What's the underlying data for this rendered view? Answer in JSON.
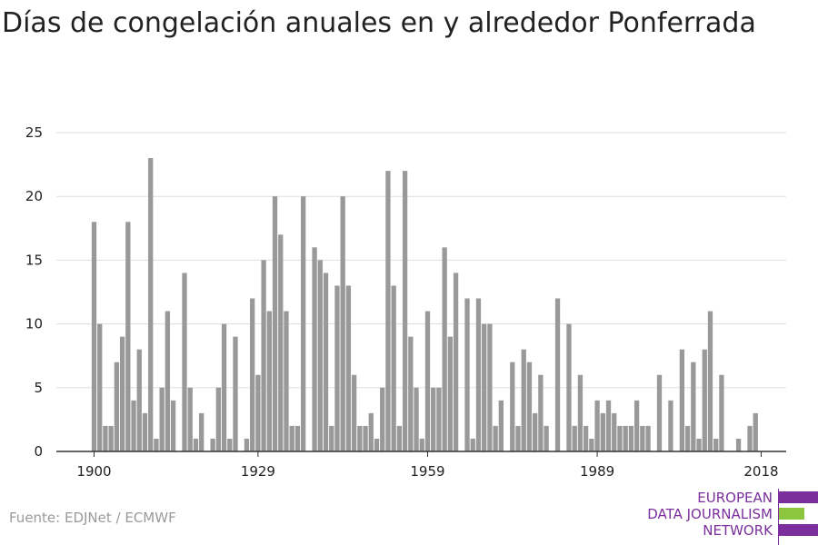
{
  "chart_data": {
    "type": "bar",
    "title": "Días de congelación anuales en y alrededor Ponferrada",
    "xlabel": "",
    "ylabel": "",
    "x": [
      1900,
      1901,
      1902,
      1903,
      1904,
      1905,
      1906,
      1907,
      1908,
      1909,
      1910,
      1911,
      1912,
      1913,
      1914,
      1915,
      1916,
      1917,
      1918,
      1919,
      1920,
      1921,
      1922,
      1923,
      1924,
      1925,
      1926,
      1927,
      1928,
      1929,
      1930,
      1931,
      1932,
      1933,
      1934,
      1935,
      1936,
      1937,
      1938,
      1939,
      1940,
      1941,
      1942,
      1943,
      1944,
      1945,
      1946,
      1947,
      1948,
      1949,
      1950,
      1951,
      1952,
      1953,
      1954,
      1955,
      1956,
      1957,
      1958,
      1959,
      1960,
      1961,
      1962,
      1963,
      1964,
      1965,
      1966,
      1967,
      1968,
      1969,
      1970,
      1971,
      1972,
      1973,
      1974,
      1975,
      1976,
      1977,
      1978,
      1979,
      1980,
      1981,
      1982,
      1983,
      1984,
      1985,
      1986,
      1987,
      1988,
      1989,
      1990,
      1991,
      1992,
      1993,
      1994,
      1995,
      1996,
      1997,
      1998,
      1999,
      2000,
      2001,
      2002,
      2003,
      2004,
      2005,
      2006,
      2007,
      2008,
      2009,
      2010,
      2011,
      2012,
      2013,
      2014,
      2015,
      2016,
      2017,
      2018
    ],
    "values": [
      18,
      10,
      2,
      2,
      7,
      9,
      18,
      4,
      8,
      3,
      23,
      1,
      5,
      11,
      4,
      0,
      14,
      5,
      1,
      3,
      0,
      1,
      5,
      10,
      1,
      9,
      0,
      1,
      12,
      6,
      15,
      11,
      20,
      17,
      11,
      2,
      2,
      20,
      0,
      16,
      15,
      14,
      2,
      13,
      20,
      13,
      6,
      2,
      2,
      3,
      1,
      5,
      22,
      13,
      2,
      22,
      9,
      5,
      1,
      11,
      5,
      5,
      16,
      9,
      14,
      0,
      12,
      1,
      12,
      10,
      10,
      2,
      4,
      0,
      7,
      2,
      8,
      7,
      3,
      6,
      2,
      0,
      12,
      0,
      10,
      2,
      6,
      2,
      1,
      4,
      3,
      4,
      3,
      2,
      2,
      2,
      4,
      2,
      2,
      0,
      6,
      0,
      4,
      0,
      8,
      2,
      7,
      1,
      8,
      11,
      1,
      6,
      0,
      0,
      1,
      0,
      2,
      3,
      0
    ],
    "xticks": [
      1900,
      1929,
      1959,
      1989,
      2018
    ],
    "yticks": [
      0,
      5,
      10,
      15,
      20,
      25
    ],
    "xlim": [
      1900,
      2018
    ],
    "ylim": [
      0,
      25
    ],
    "grid": true,
    "colors": {
      "bar": "#999999",
      "grid": "#dddddd",
      "axis": "#333333"
    }
  },
  "source": "Fuente: EDJNet / ECMWF",
  "logo": {
    "lines": [
      "EUROPEAN",
      "DATA JOURNALISM",
      "NETWORK"
    ],
    "colors": {
      "purple": "#7b2f9d",
      "green": "#8cc63f"
    }
  }
}
